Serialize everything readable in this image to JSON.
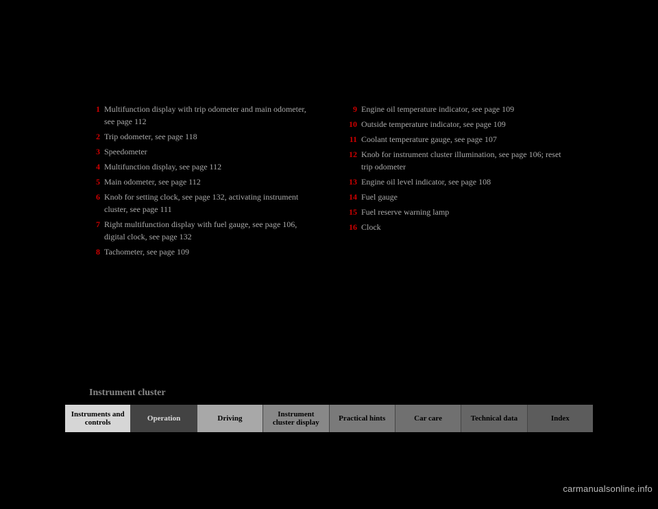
{
  "left_entries": [
    {
      "n": "1",
      "t": "Multifunction display with trip odometer and main odometer, see page 112"
    },
    {
      "n": "2",
      "t": "Trip odometer, see page 118"
    },
    {
      "n": "3",
      "t": "Speedometer"
    },
    {
      "n": "4",
      "t": "Multifunction display, see page 112"
    },
    {
      "n": "5",
      "t": "Main odometer, see page 112"
    },
    {
      "n": "6",
      "t": "Knob for setting clock, see page 132, activating instrument cluster, see page 111"
    },
    {
      "n": "7",
      "t": "Right multifunction display with fuel gauge, see page 106, digital clock, see page 132"
    },
    {
      "n": "8",
      "t": "Tachometer, see page 109"
    }
  ],
  "right_entries": [
    {
      "n": "9",
      "t": "Engine oil temperature indicator, see page 109"
    },
    {
      "n": "10",
      "t": "Outside temperature indicator, see page 109"
    },
    {
      "n": "11",
      "t": "Coolant temperature gauge, see page 107"
    },
    {
      "n": "12",
      "t": "Knob for instrument cluster illumination, see page 106; reset trip odometer"
    },
    {
      "n": "13",
      "t": "Engine oil level indicator, see page 108"
    },
    {
      "n": "14",
      "t": "Fuel gauge"
    },
    {
      "n": "15",
      "t": "Fuel reserve warning lamp"
    },
    {
      "n": "16",
      "t": "Clock"
    }
  ],
  "footer": "Instrument cluster",
  "tabs": [
    {
      "label": "Instruments and controls",
      "bg": "#d6d6d6"
    },
    {
      "label": "Operation",
      "bg": "#434343"
    },
    {
      "label": "Driving",
      "bg": "#a8a8a8"
    },
    {
      "label": "Instrument cluster display",
      "bg": "#888888"
    },
    {
      "label": "Practical hints",
      "bg": "#7a7a7a"
    },
    {
      "label": "Car care",
      "bg": "#707070"
    },
    {
      "label": "Technical data",
      "bg": "#666666"
    },
    {
      "label": "Index",
      "bg": "#5c5c5c"
    }
  ],
  "tab_text_colors": [
    "#000",
    "#ddd",
    "#000",
    "#000",
    "#000",
    "#000",
    "#000",
    "#000"
  ],
  "watermark": "carmanualsonline.info"
}
